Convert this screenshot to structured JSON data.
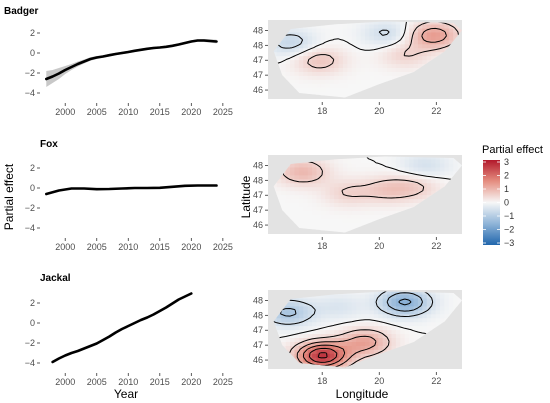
{
  "figure": {
    "left_xlabel": "Year",
    "left_ylabel": "Partial effect",
    "right_xlabel": "Longitude",
    "right_ylabel": "Latitude",
    "legend_title": "Partial effect",
    "legend_ticks": [
      "3",
      "2",
      "1",
      "0",
      "−1",
      "−2",
      "−3"
    ]
  },
  "chart_data": [
    {
      "type": "line",
      "panel": "Badger",
      "title": "Badger",
      "xlim": [
        1996,
        2025.5
      ],
      "ylim": [
        -4.6,
        3.3
      ],
      "xticks": [
        2000,
        2005,
        2010,
        2015,
        2020,
        2025
      ],
      "yticks": [
        2,
        0,
        -2,
        -4
      ],
      "yticklabels": [
        "2",
        "0",
        "−2",
        "−4"
      ],
      "x": [
        1997,
        1998,
        1999,
        2000,
        2001,
        2002,
        2003,
        2004,
        2005,
        2006,
        2007,
        2008,
        2009,
        2010,
        2011,
        2012,
        2013,
        2014,
        2015,
        2016,
        2017,
        2018,
        2019,
        2020,
        2021,
        2022,
        2023,
        2024
      ],
      "y": [
        -2.6,
        -2.35,
        -2.05,
        -1.7,
        -1.4,
        -1.1,
        -0.85,
        -0.6,
        -0.45,
        -0.35,
        -0.22,
        -0.1,
        0.0,
        0.1,
        0.22,
        0.32,
        0.42,
        0.5,
        0.55,
        0.62,
        0.72,
        0.85,
        1.0,
        1.15,
        1.25,
        1.25,
        1.2,
        1.15
      ],
      "ci_lower": [
        -3.4,
        -3.0,
        -2.6,
        -2.1,
        -1.7,
        -1.35,
        -1.05,
        -0.78,
        -0.6,
        -0.48,
        -0.35,
        -0.22,
        -0.12,
        -0.02,
        0.1,
        0.2,
        0.3,
        0.38,
        0.44,
        0.5,
        0.6,
        0.73,
        0.88,
        1.03,
        1.12,
        1.1,
        1.04,
        0.96
      ],
      "ci_upper": [
        -1.8,
        -1.7,
        -1.5,
        -1.3,
        -1.1,
        -0.85,
        -0.65,
        -0.42,
        -0.3,
        -0.22,
        -0.09,
        0.02,
        0.12,
        0.22,
        0.34,
        0.44,
        0.54,
        0.62,
        0.66,
        0.74,
        0.84,
        0.97,
        1.12,
        1.27,
        1.38,
        1.4,
        1.36,
        1.34
      ]
    },
    {
      "type": "line",
      "panel": "Fox",
      "title": "Fox",
      "xlim": [
        1996,
        2025.5
      ],
      "ylim": [
        -4.6,
        3.3
      ],
      "xticks": [
        2000,
        2005,
        2010,
        2015,
        2020,
        2025
      ],
      "yticks": [
        2,
        0,
        -2,
        -4
      ],
      "yticklabels": [
        "2",
        "0",
        "−2",
        "−4"
      ],
      "x": [
        1997,
        1999,
        2001,
        2003,
        2005,
        2007,
        2009,
        2011,
        2013,
        2015,
        2017,
        2019,
        2021,
        2024
      ],
      "y": [
        -0.6,
        -0.25,
        -0.05,
        -0.05,
        -0.12,
        -0.1,
        -0.05,
        0.0,
        0.0,
        0.02,
        0.12,
        0.22,
        0.25,
        0.25
      ]
    },
    {
      "type": "line",
      "panel": "Jackal",
      "title": "Jackal",
      "xlim": [
        1996,
        2025.5
      ],
      "ylim": [
        -4.6,
        3.3
      ],
      "xticks": [
        2000,
        2005,
        2010,
        2015,
        2020,
        2025
      ],
      "yticks": [
        2,
        0,
        -2,
        -4
      ],
      "yticklabels": [
        "2",
        "0",
        "−2",
        "−4"
      ],
      "x": [
        1998,
        1999,
        2000,
        2001,
        2002,
        2003,
        2004,
        2005,
        2006,
        2007,
        2008,
        2009,
        2010,
        2011,
        2012,
        2013,
        2014,
        2015,
        2016,
        2017,
        2018,
        2019,
        2020
      ],
      "y": [
        -3.9,
        -3.55,
        -3.25,
        -3.0,
        -2.8,
        -2.55,
        -2.3,
        -2.05,
        -1.7,
        -1.35,
        -0.95,
        -0.6,
        -0.3,
        0.0,
        0.3,
        0.55,
        0.85,
        1.2,
        1.55,
        1.95,
        2.35,
        2.65,
        2.95
      ]
    },
    {
      "type": "heatmap",
      "panel": "Badger",
      "xlim": [
        16.1,
        22.9
      ],
      "ylim": [
        45.7,
        48.35
      ],
      "xticks": [
        18,
        20,
        22
      ],
      "yticks": [
        48,
        47.5,
        47,
        46.5,
        46
      ],
      "yticklabels": [
        "48",
        "48",
        "47",
        "47",
        "46"
      ],
      "color_range": [
        -3,
        3
      ],
      "blobs": [
        {
          "x": 21.9,
          "y": 47.85,
          "value": 1.3
        },
        {
          "x": 17.9,
          "y": 47.0,
          "value": 0.7
        },
        {
          "x": 20.9,
          "y": 47.2,
          "value": 0.5
        },
        {
          "x": 16.9,
          "y": 47.6,
          "value": -0.7
        },
        {
          "x": 20.3,
          "y": 47.9,
          "value": -0.6
        }
      ]
    },
    {
      "type": "heatmap",
      "panel": "Fox",
      "xlim": [
        16.1,
        22.9
      ],
      "ylim": [
        45.7,
        48.35
      ],
      "xticks": [
        18,
        20,
        22
      ],
      "yticks": [
        48,
        47.5,
        47,
        46.5,
        46
      ],
      "yticklabels": [
        "48",
        "48",
        "47",
        "47",
        "46"
      ],
      "color_range": [
        -3,
        3
      ],
      "blobs": [
        {
          "x": 17.3,
          "y": 47.8,
          "value": 0.9
        },
        {
          "x": 20.3,
          "y": 47.2,
          "value": 0.6
        },
        {
          "x": 18.9,
          "y": 47.1,
          "value": 0.5
        },
        {
          "x": 21.3,
          "y": 47.3,
          "value": 0.5
        },
        {
          "x": 21.6,
          "y": 48.0,
          "value": -0.5
        }
      ]
    },
    {
      "type": "heatmap",
      "panel": "Jackal",
      "xlim": [
        16.1,
        22.9
      ],
      "ylim": [
        45.7,
        48.35
      ],
      "xticks": [
        18,
        20,
        22
      ],
      "yticks": [
        48,
        47.5,
        47,
        46.5,
        46
      ],
      "yticklabels": [
        "48",
        "48",
        "47",
        "47",
        "46"
      ],
      "color_range": [
        -3,
        3
      ],
      "blobs": [
        {
          "x": 18.0,
          "y": 46.15,
          "value": 2.6
        },
        {
          "x": 19.5,
          "y": 46.6,
          "value": 1.2
        },
        {
          "x": 20.9,
          "y": 47.95,
          "value": -1.6
        },
        {
          "x": 16.8,
          "y": 47.6,
          "value": -1.1
        },
        {
          "x": 18.6,
          "y": 47.8,
          "value": -0.4
        }
      ]
    }
  ]
}
